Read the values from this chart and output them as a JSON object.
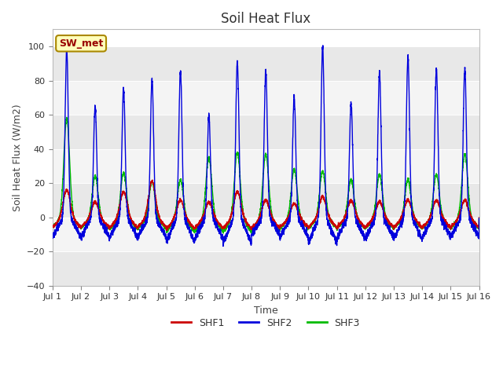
{
  "title": "Soil Heat Flux",
  "xlabel": "Time",
  "ylabel": "Soil Heat Flux (W/m2)",
  "ylim": [
    -40,
    110
  ],
  "yticks": [
    -40,
    -20,
    0,
    20,
    40,
    60,
    80,
    100
  ],
  "line_colors": {
    "SHF1": "#cc0000",
    "SHF2": "#0000dd",
    "SHF3": "#00bb00"
  },
  "line_widths": {
    "SHF1": 1.0,
    "SHF2": 1.0,
    "SHF3": 1.0
  },
  "bg_color": "#ffffff",
  "plot_bg_color": "#ffffff",
  "band_colors": [
    "#e8e8e8",
    "#f4f4f4"
  ],
  "station_label": "SW_met",
  "station_label_bg": "#ffffbb",
  "station_label_fg": "#990000",
  "station_label_border": "#aa8800",
  "num_days": 15,
  "points_per_day": 288,
  "shf2_peaks": [
    98,
    65,
    75,
    81,
    86,
    60,
    91,
    86,
    70,
    100,
    67,
    85,
    94,
    87,
    87
  ],
  "shf1_peaks": [
    16,
    9,
    15,
    21,
    10,
    9,
    15,
    10,
    8,
    12,
    10,
    9,
    10,
    10,
    10
  ],
  "shf3_peaks": [
    58,
    24,
    26,
    21,
    22,
    35,
    38,
    37,
    28,
    27,
    22,
    25,
    22,
    25,
    37
  ],
  "shf2_troughs": [
    -20,
    -20,
    -21,
    -20,
    -25,
    -22,
    -27,
    -18,
    -20,
    -26,
    -22,
    -21,
    -22,
    -20,
    -20
  ],
  "shf1_troughs": [
    -10,
    -10,
    -11,
    -10,
    -12,
    -11,
    -11,
    -11,
    -10,
    -10,
    -10,
    -10,
    -10,
    -10,
    -10
  ],
  "shf3_troughs": [
    -10,
    -11,
    -12,
    -11,
    -15,
    -14,
    -15,
    -13,
    -11,
    -11,
    -11,
    -11,
    -11,
    -11,
    -11
  ]
}
